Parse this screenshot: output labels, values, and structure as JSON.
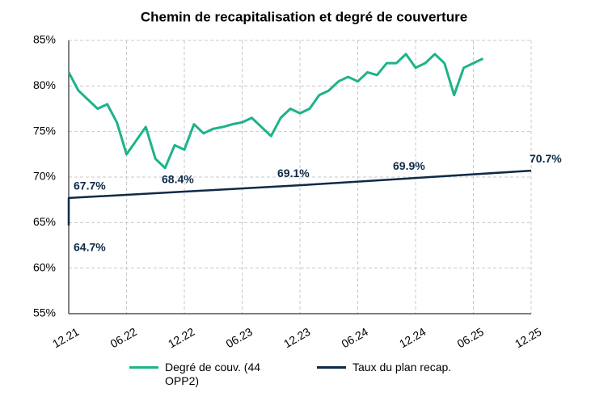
{
  "chart_data": {
    "type": "line",
    "title": "Chemin de recapitalisation et degré de couverture",
    "series": [
      {
        "name": "Degré de couv. (44 OPP2)",
        "color": "#1db38a",
        "x": [
          "2021-12",
          "2022-01",
          "2022-02",
          "2022-03",
          "2022-04",
          "2022-05",
          "2022-06",
          "2022-07",
          "2022-08",
          "2022-09",
          "2022-10",
          "2022-11",
          "2022-12",
          "2023-01",
          "2023-02",
          "2023-03",
          "2023-04",
          "2023-05",
          "2023-06",
          "2023-07",
          "2023-08",
          "2023-09",
          "2023-10",
          "2023-11",
          "2023-12",
          "2024-01",
          "2024-02",
          "2024-03",
          "2024-04",
          "2024-05",
          "2024-06",
          "2024-07",
          "2024-08",
          "2024-09",
          "2024-10",
          "2024-11",
          "2024-12",
          "2025-01",
          "2025-02",
          "2025-03",
          "2025-04",
          "2025-05",
          "2025-06",
          "2025-07"
        ],
        "values": [
          81.5,
          79.5,
          78.5,
          77.5,
          78,
          76,
          72.5,
          74,
          75.5,
          72,
          71,
          73.5,
          73,
          75.8,
          74.8,
          75.3,
          75.5,
          75.8,
          76,
          76.5,
          75.5,
          74.5,
          76.5,
          77.5,
          77,
          77.5,
          79,
          79.5,
          80.5,
          81,
          80.5,
          81.5,
          81.2,
          82.5,
          82.5,
          83.5,
          82,
          82.5,
          83.5,
          82.5,
          79,
          82,
          82.5,
          83
        ]
      },
      {
        "name": "Taux du plan recap.",
        "color": "#0e2a47",
        "x": [
          "2021-12",
          "2021-12",
          "2022-12",
          "2023-12",
          "2024-12",
          "2025-12"
        ],
        "values": [
          64.7,
          67.7,
          68.4,
          69.1,
          69.9,
          70.7
        ],
        "value_labels": [
          "64.7%",
          "67.7%",
          "68.4%",
          "69.1%",
          "69.9%",
          "70.7%"
        ]
      }
    ],
    "xlim": [
      "2021-12",
      "2025-12"
    ],
    "xticks": [
      {
        "value": "2021-12",
        "label": "12.21"
      },
      {
        "value": "2022-06",
        "label": "06.22"
      },
      {
        "value": "2022-12",
        "label": "12.22"
      },
      {
        "value": "2023-06",
        "label": "06.23"
      },
      {
        "value": "2023-12",
        "label": "12.23"
      },
      {
        "value": "2024-06",
        "label": "06.24"
      },
      {
        "value": "2024-12",
        "label": "12.24"
      },
      {
        "value": "2025-06",
        "label": "06.25"
      },
      {
        "value": "2025-12",
        "label": "12.25"
      }
    ],
    "ylim": [
      55,
      85
    ],
    "yticks": [
      {
        "value": 55,
        "label": "55%"
      },
      {
        "value": 60,
        "label": "60%"
      },
      {
        "value": 65,
        "label": "65%"
      },
      {
        "value": 70,
        "label": "70%"
      },
      {
        "value": 75,
        "label": "75%"
      },
      {
        "value": 80,
        "label": "80%"
      },
      {
        "value": 85,
        "label": "85%"
      }
    ],
    "grid": true
  }
}
